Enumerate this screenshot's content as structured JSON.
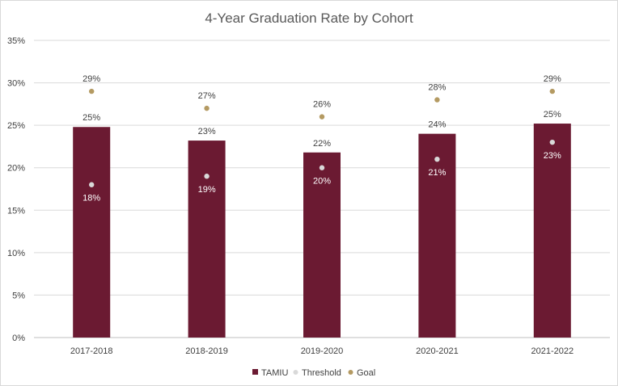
{
  "chart_data": {
    "type": "bar",
    "title": "4-Year Graduation Rate by Cohort",
    "categories": [
      "2017-2018",
      "2018-2019",
      "2019-2020",
      "2020-2021",
      "2021-2022"
    ],
    "ylim": [
      0,
      35
    ],
    "yticks": [
      0,
      5,
      10,
      15,
      20,
      25,
      30,
      35
    ],
    "ytick_labels": [
      "0%",
      "5%",
      "10%",
      "15%",
      "20%",
      "25%",
      "30%",
      "35%"
    ],
    "grid": true,
    "legend_position": "bottom",
    "series": [
      {
        "name": "TAMIU",
        "kind": "bar",
        "color": "#6b1a32",
        "values": [
          24.8,
          23.2,
          21.8,
          24.0,
          25.2
        ],
        "labels": [
          "25%",
          "23%",
          "22%",
          "24%",
          "25%"
        ],
        "label_color": "#404040"
      },
      {
        "name": "Threshold",
        "kind": "marker",
        "color": "#d9d9d9",
        "values": [
          18,
          19,
          20,
          21,
          23
        ],
        "labels": [
          "18%",
          "19%",
          "20%",
          "21%",
          "23%"
        ],
        "label_color": "#ffffff"
      },
      {
        "name": "Goal",
        "kind": "marker",
        "color": "#b49a62",
        "values": [
          29,
          27,
          26,
          28,
          29
        ],
        "labels": [
          "29%",
          "27%",
          "26%",
          "28%",
          "29%"
        ],
        "label_color": "#404040"
      }
    ]
  }
}
